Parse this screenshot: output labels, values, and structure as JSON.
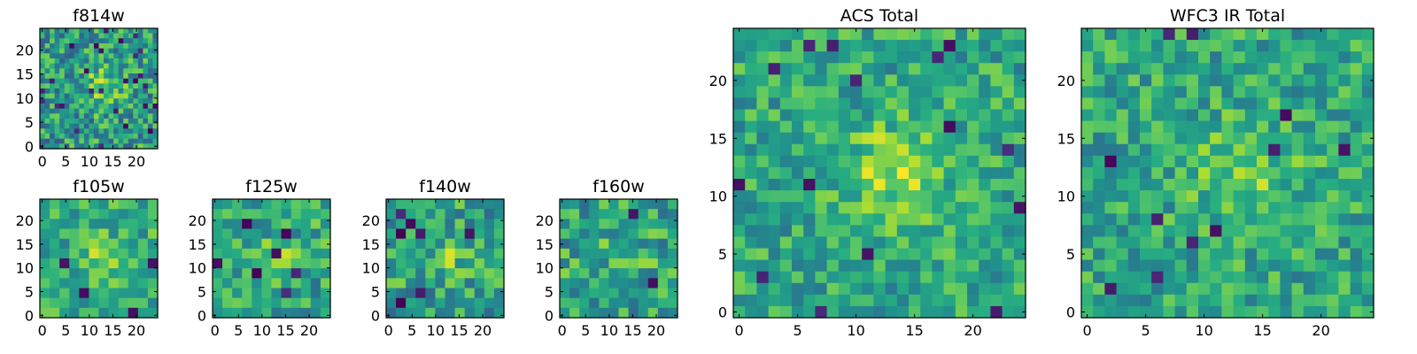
{
  "chart_data": [
    {
      "type": "heatmap",
      "id": "f814w",
      "title": "f814w",
      "pixels": 24,
      "xlim": [
        0,
        24
      ],
      "ylim": [
        0,
        24
      ],
      "xticks": [
        "0",
        "5",
        "10",
        "15",
        "20"
      ],
      "yticks": [
        "0",
        "5",
        "10",
        "15",
        "20"
      ],
      "colormap": "viridis",
      "mean": 0.55,
      "noise": 0.26,
      "blob": 0.25,
      "seed": 814
    },
    {
      "type": "heatmap",
      "id": "f105w",
      "title": "f105w",
      "pixels": 12,
      "xlim": [
        0,
        24
      ],
      "ylim": [
        0,
        24
      ],
      "xticks": [
        "0",
        "5",
        "10",
        "15",
        "20"
      ],
      "yticks": [
        "0",
        "5",
        "10",
        "15",
        "20"
      ],
      "colormap": "viridis",
      "mean": 0.62,
      "noise": 0.2,
      "blob": 0.2,
      "seed": 105
    },
    {
      "type": "heatmap",
      "id": "f125w",
      "title": "f125w",
      "pixels": 12,
      "xlim": [
        0,
        24
      ],
      "ylim": [
        0,
        24
      ],
      "xticks": [
        "0",
        "5",
        "10",
        "15",
        "20"
      ],
      "yticks": [
        "0",
        "5",
        "10",
        "15",
        "20"
      ],
      "colormap": "viridis",
      "mean": 0.6,
      "noise": 0.22,
      "blob": 0.15,
      "seed": 125
    },
    {
      "type": "heatmap",
      "id": "f140w",
      "title": "f140w",
      "pixels": 12,
      "xlim": [
        0,
        24
      ],
      "ylim": [
        0,
        24
      ],
      "xticks": [
        "0",
        "5",
        "10",
        "15",
        "20"
      ],
      "yticks": [
        "0",
        "5",
        "10",
        "15",
        "20"
      ],
      "colormap": "viridis",
      "mean": 0.58,
      "noise": 0.24,
      "blob": 0.15,
      "seed": 140
    },
    {
      "type": "heatmap",
      "id": "f160w",
      "title": "f160w",
      "pixels": 12,
      "xlim": [
        0,
        24
      ],
      "ylim": [
        0,
        24
      ],
      "xticks": [
        "0",
        "5",
        "10",
        "15",
        "20"
      ],
      "yticks": [
        "0",
        "5",
        "10",
        "15",
        "20"
      ],
      "colormap": "viridis",
      "mean": 0.6,
      "noise": 0.24,
      "blob": 0.15,
      "seed": 160
    },
    {
      "type": "heatmap",
      "id": "acs-total",
      "title": "ACS Total",
      "pixels": 25,
      "xlim": [
        0,
        24
      ],
      "ylim": [
        0,
        24
      ],
      "xticks": [
        "0",
        "5",
        "10",
        "15",
        "20"
      ],
      "yticks": [
        "0",
        "5",
        "10",
        "15",
        "20"
      ],
      "colormap": "viridis",
      "mean": 0.6,
      "noise": 0.2,
      "blob": 0.25,
      "seed": 3100
    },
    {
      "type": "heatmap",
      "id": "wfc3-ir-total",
      "title": "WFC3 IR Total",
      "pixels": 25,
      "xlim": [
        0,
        24
      ],
      "ylim": [
        0,
        24
      ],
      "xticks": [
        "0",
        "5",
        "10",
        "15",
        "20"
      ],
      "yticks": [
        "0",
        "5",
        "10",
        "15",
        "20"
      ],
      "colormap": "viridis",
      "mean": 0.6,
      "noise": 0.2,
      "blob": 0.2,
      "seed": 3200
    }
  ]
}
